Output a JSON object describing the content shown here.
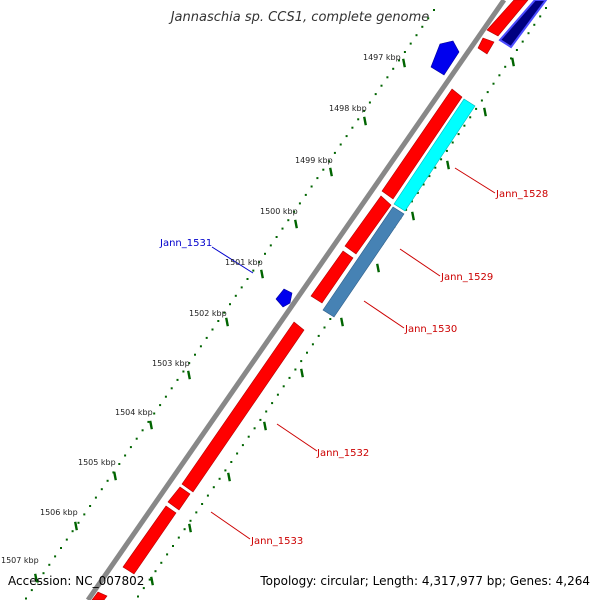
{
  "title": "Jannaschia sp. CCS1, complete genome",
  "footer": {
    "accession": "Accession: NC_007802",
    "summary": "Topology: circular; Length: 4,317,977 bp; Genes: 4,264"
  },
  "ruler_labels": [
    "1497 kbp",
    "1498 kbp",
    "1499 kbp",
    "1500 kbp",
    "1501 kbp",
    "1502 kbp",
    "1503 kbp",
    "1504 kbp",
    "1505 kbp",
    "1506 kbp",
    "1507 kbp"
  ],
  "gene_labels": [
    {
      "text": "Jann_1528",
      "color": "#cc0000"
    },
    {
      "text": "Jann_1529",
      "color": "#cc0000"
    },
    {
      "text": "Jann_1530",
      "color": "#cc0000"
    },
    {
      "text": "Jann_1531",
      "color": "#0000cc"
    },
    {
      "text": "Jann_1532",
      "color": "#cc0000"
    },
    {
      "text": "Jann_1533",
      "color": "#cc0000"
    }
  ],
  "colors": {
    "forward_cds": "#ff0000",
    "reverse_cds": "#0000ff",
    "highlight_cyan": "#00ffff",
    "highlight_steel": "#4682b4",
    "backbone": "#888888",
    "tick_green": "#006400"
  }
}
